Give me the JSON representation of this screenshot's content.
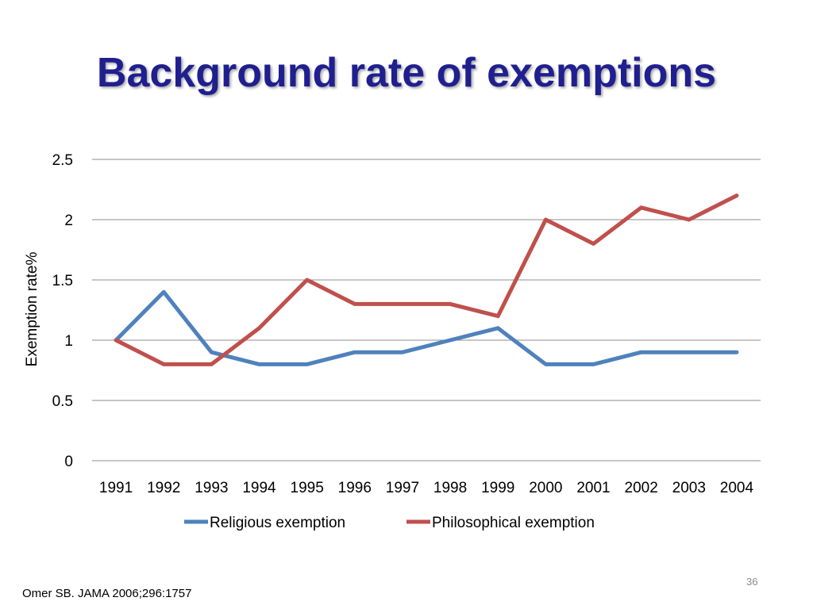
{
  "slide": {
    "title": "Background rate of exemptions",
    "citation": "Omer SB. JAMA 2006;296:1757",
    "number": "36"
  },
  "chart_data": {
    "type": "line",
    "title": "",
    "xlabel": "",
    "ylabel": "Exemption rate%",
    "categories": [
      "1991",
      "1992",
      "1993",
      "1994",
      "1995",
      "1996",
      "1997",
      "1998",
      "1999",
      "2000",
      "2001",
      "2002",
      "2003",
      "2004"
    ],
    "ylim": [
      0,
      2.5
    ],
    "yticks": [
      "0",
      "0.5",
      "1",
      "1.5",
      "2",
      "2.5"
    ],
    "grid": true,
    "legend": "bottom",
    "series": [
      {
        "name": "Religious exemption",
        "color": "#4f81bd",
        "values": [
          1.0,
          1.4,
          0.9,
          0.8,
          0.8,
          0.9,
          0.9,
          1.0,
          1.1,
          0.8,
          0.8,
          0.9,
          0.9,
          0.9
        ]
      },
      {
        "name": "Philosophical exemption",
        "color": "#c0504d",
        "values": [
          1.0,
          0.8,
          0.8,
          1.1,
          1.5,
          1.3,
          1.3,
          1.3,
          1.2,
          2.0,
          1.8,
          2.1,
          2.0,
          2.2
        ]
      }
    ]
  }
}
